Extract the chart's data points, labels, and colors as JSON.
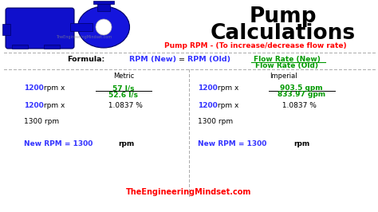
{
  "title_line1": "Pump",
  "title_line2": "Calculations",
  "subtitle": "Pump RPM - (To increase/decrease flow rate)",
  "subtitle_color": "#ff0000",
  "title_color": "#000000",
  "bg_color": "#ffffff",
  "formula_label": "Formula:",
  "formula_new": "RPM (New)",
  "formula_eq": "=",
  "formula_old": "RPM (Old)",
  "formula_fr_new": "Flow Rate (New)",
  "formula_fr_old": "Flow Rate (Old)",
  "metric_label": "Metric",
  "imperial_label": "Imperial",
  "metric_rpm1": "1200",
  "metric_rpmx1": " rpm x",
  "metric_num": "57 l/s",
  "metric_den": "52.6 l/s",
  "metric_rpm2": "1200",
  "metric_rpmx2": " rpm x",
  "metric_pct": "  1.0837 %",
  "metric_result1": "1300 rpm",
  "metric_new_rpm_blue": "New RPM = 1300 ",
  "metric_new_rpm_black": "rpm",
  "imperial_rpm1": "1200",
  "imperial_rpmx1": " rpm x",
  "imperial_num": "903.5 gpm",
  "imperial_den": "833.97 gpm",
  "imperial_rpm2": "1200",
  "imperial_rpmx2": " rpm x",
  "imperial_pct": "  1.0837 %",
  "imperial_result1": "1300 rpm",
  "imperial_new_rpm_blue": "New RPM = 1300 ",
  "imperial_new_rpm_black": "rpm",
  "footer": "TheEngineeringMindset.com",
  "footer_color": "#ff0000",
  "blue_color": "#3333ff",
  "green_color": "#009900",
  "black_color": "#000000",
  "gray_color": "#888888",
  "dashed_color": "#aaaaaa"
}
